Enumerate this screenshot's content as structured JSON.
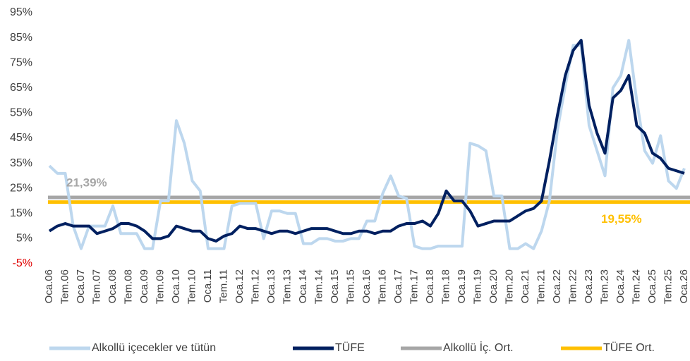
{
  "chart_data": {
    "type": "line",
    "categories": [
      "Oca.06",
      null,
      "Tem.06",
      null,
      "Oca.07",
      null,
      "Tem.07",
      null,
      "Oca.08",
      null,
      "Tem.08",
      null,
      "Oca.09",
      null,
      "Tem.09",
      null,
      "Oca.10",
      null,
      "Tem.10",
      null,
      "Oca.11",
      null,
      "Tem.11",
      null,
      "Oca.12",
      null,
      "Tem.12",
      null,
      "Oca.13",
      null,
      "Tem.13",
      null,
      "Oca.14",
      null,
      "Tem.14",
      null,
      "Oca.15",
      null,
      "Tem.15",
      null,
      "Oca.16",
      null,
      "Tem.16",
      null,
      "Oca.17",
      null,
      "Tem.17",
      null,
      "Oca.18",
      null,
      "Tem.18",
      null,
      "Oca.19",
      null,
      "Tem.19",
      null,
      "Oca.20",
      null,
      "Tem.20",
      null,
      "Oca.21",
      null,
      "Tem.21",
      null,
      "Oca.22",
      null,
      "Tem.22",
      null,
      "Oca.23",
      null,
      "Tem.23",
      null,
      "Oca.24",
      null,
      "Tem.24",
      null,
      "Oca.25",
      null,
      "Tem.25",
      null,
      "Oca.26"
    ],
    "series": [
      {
        "name": "Alkollü içecekler ve tütün",
        "color": "#bdd7ee",
        "values": [
          34,
          31,
          31,
          10,
          1,
          10,
          10,
          10,
          18,
          7,
          7,
          7,
          1,
          1,
          20,
          20,
          52,
          43,
          28,
          24,
          1,
          1,
          1,
          18,
          19,
          19,
          19,
          5,
          16,
          16,
          15,
          15,
          3,
          3,
          5,
          5,
          4,
          4,
          5,
          5,
          12,
          12,
          23,
          30,
          22,
          21,
          2,
          1,
          1,
          2,
          2,
          2,
          2,
          43,
          42,
          40,
          22,
          22,
          1,
          1,
          3,
          1,
          8,
          20,
          48,
          66,
          82,
          82,
          50,
          40,
          30,
          65,
          70,
          84,
          60,
          40,
          35,
          46,
          28,
          25,
          33
        ]
      },
      {
        "name": "TÜFE",
        "color": "#002060",
        "values": [
          8,
          10,
          11,
          10,
          10,
          10,
          7,
          8,
          9,
          11,
          11,
          10,
          8,
          5,
          5,
          6,
          10,
          9,
          8,
          8,
          5,
          4,
          6,
          7,
          10,
          9,
          9,
          8,
          7,
          8,
          8,
          7,
          8,
          9,
          9,
          9,
          8,
          7,
          7,
          8,
          8,
          7,
          8,
          8,
          10,
          11,
          11,
          12,
          10,
          15,
          24,
          20,
          20,
          16,
          10,
          11,
          12,
          12,
          12,
          14,
          16,
          17,
          20,
          36,
          54,
          70,
          80,
          84,
          58,
          47,
          39,
          61,
          64,
          70,
          50,
          47,
          39,
          37,
          33,
          32,
          31
        ]
      }
    ],
    "reference_lines": [
      {
        "name": "Alkollü İç. Ort.",
        "value": 21.39,
        "label": "21,39%",
        "color": "#a6a6a6"
      },
      {
        "name": "TÜFE Ort.",
        "value": 19.55,
        "label": "19,55%",
        "color": "#ffc000"
      }
    ],
    "ylim": [
      -5,
      95
    ],
    "yticks": [
      {
        "value": -5,
        "label": "-5%"
      },
      {
        "value": 5,
        "label": "5%"
      },
      {
        "value": 15,
        "label": "15%"
      },
      {
        "value": 25,
        "label": "25%"
      },
      {
        "value": 35,
        "label": "35%"
      },
      {
        "value": 45,
        "label": "45%"
      },
      {
        "value": 55,
        "label": "55%"
      },
      {
        "value": 65,
        "label": "65%"
      },
      {
        "value": 75,
        "label": "75%"
      },
      {
        "value": 85,
        "label": "85%"
      },
      {
        "value": 95,
        "label": "95%"
      }
    ],
    "grid": false,
    "legend": "bottom"
  }
}
